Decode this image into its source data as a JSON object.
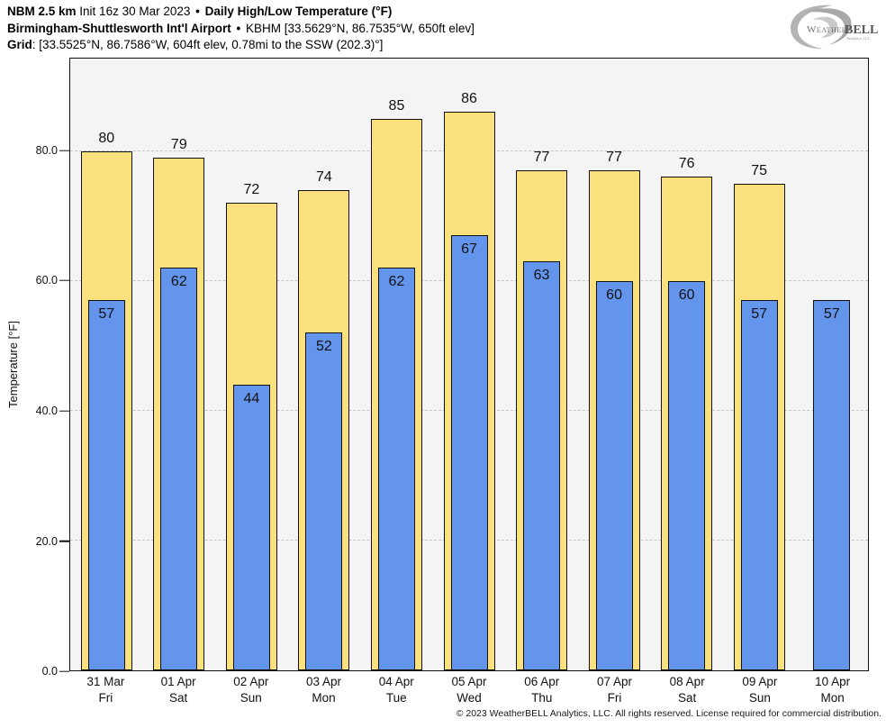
{
  "header": {
    "model": "NBM 2.5 km",
    "init": "Init 16z 30 Mar 2023",
    "sep": "•",
    "product": "Daily High/Low Temperature (°F)",
    "station_name": "Birmingham-Shuttlesworth Int'l Airport",
    "station_info": "KBHM [33.5629°N, 86.7535°W, 650ft elev]",
    "grid_label": "Grid",
    "grid_info": ": [33.5525°N, 86.7586°W, 604ft elev, 0.78mi to the SSW (202.3)°]"
  },
  "logo": {
    "text1": "Weather",
    "text2": "BELL",
    "subtext": "Analytics LLC"
  },
  "footer": {
    "copyright": "© 2023 WeatherBELL Analytics, LLC. All rights reserved. License required for commercial distribution."
  },
  "chart_data": {
    "type": "bar",
    "title": "Daily High/Low Temperature (°F)",
    "ylabel": "Temperature [°F]",
    "categories": [
      {
        "date": "31 Mar",
        "weekday": "Fri"
      },
      {
        "date": "01 Apr",
        "weekday": "Sat"
      },
      {
        "date": "02 Apr",
        "weekday": "Sun"
      },
      {
        "date": "03 Apr",
        "weekday": "Mon"
      },
      {
        "date": "04 Apr",
        "weekday": "Tue"
      },
      {
        "date": "05 Apr",
        "weekday": "Wed"
      },
      {
        "date": "06 Apr",
        "weekday": "Thu"
      },
      {
        "date": "07 Apr",
        "weekday": "Fri"
      },
      {
        "date": "08 Apr",
        "weekday": "Sat"
      },
      {
        "date": "09 Apr",
        "weekday": "Sun"
      },
      {
        "date": "10 Apr",
        "weekday": "Mon"
      }
    ],
    "series": [
      {
        "name": "High",
        "color": "#FBE17E",
        "values": [
          80,
          79,
          72,
          74,
          85,
          86,
          77,
          77,
          76,
          75,
          null
        ]
      },
      {
        "name": "Low",
        "color": "#6495ED",
        "values": [
          57,
          62,
          44,
          52,
          62,
          67,
          63,
          60,
          60,
          57,
          57
        ]
      }
    ],
    "yticks": [
      0,
      20,
      40,
      60,
      80
    ],
    "ytick_labels": [
      "0.0",
      "20.0",
      "40.0",
      "60.0",
      "80.0"
    ],
    "ylim": [
      0,
      94.25
    ],
    "grid": "horizontal dashed",
    "legend": "none",
    "plot_bg": "#F4F4F4",
    "bar_border": "#111111"
  }
}
